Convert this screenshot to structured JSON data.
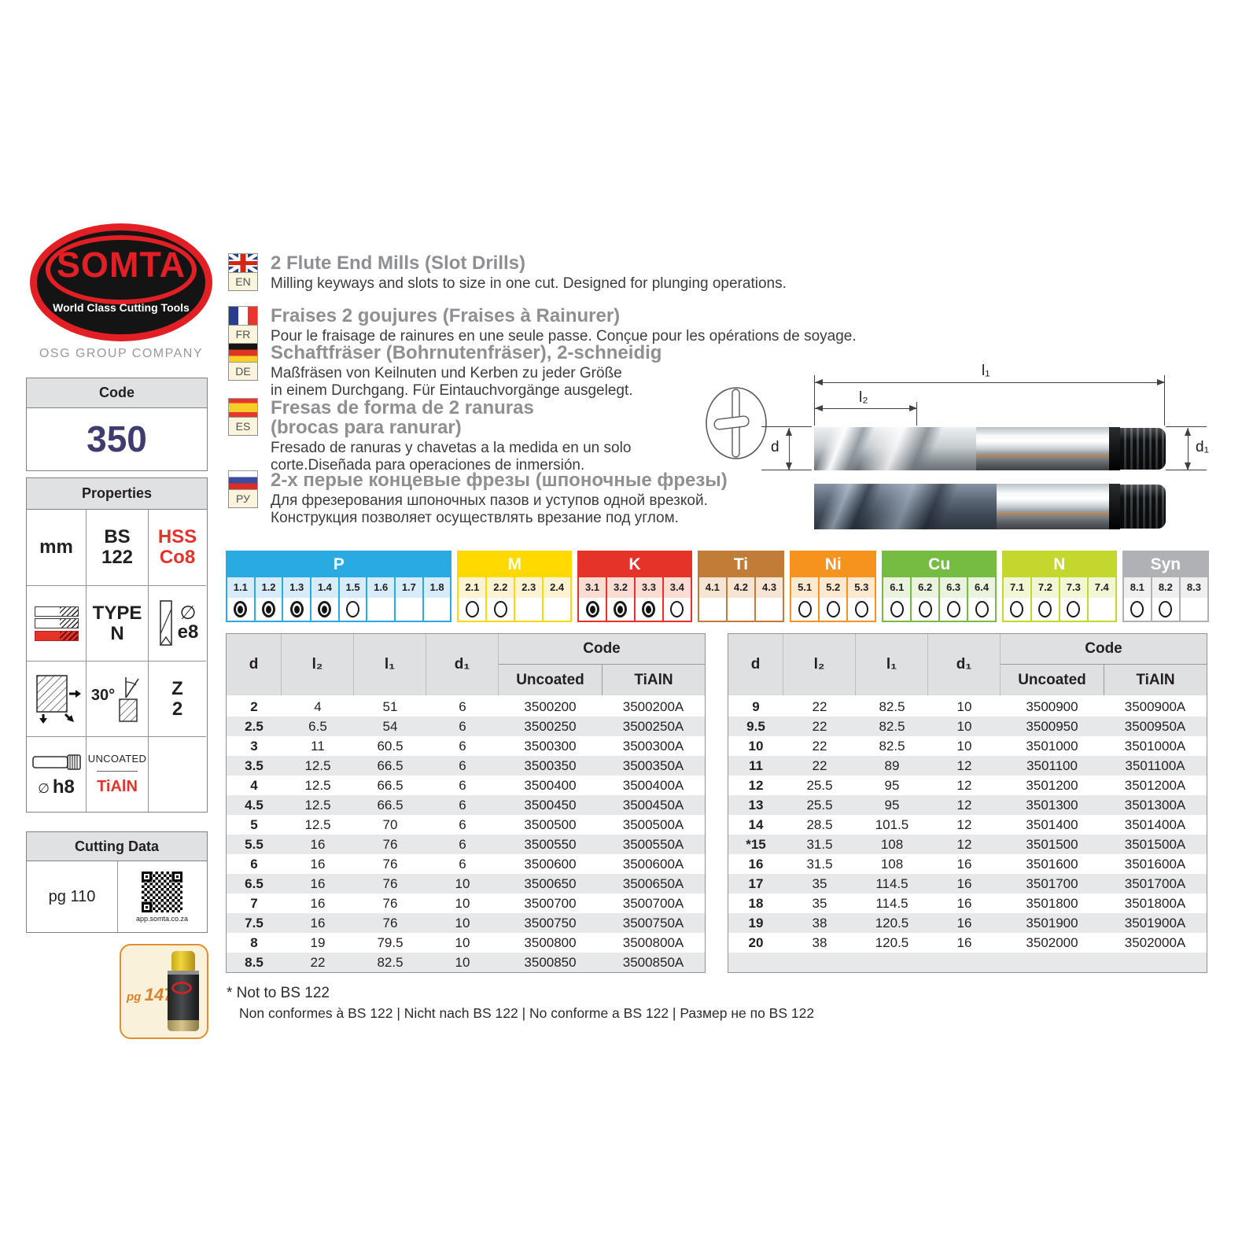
{
  "brand": {
    "logo_line1": "SOMTA",
    "logo_line2": "World Class Cutting Tools",
    "company": "OSG GROUP COMPANY"
  },
  "code_box": {
    "label": "Code",
    "value": "350"
  },
  "properties": {
    "title": "Properties",
    "unit": "mm",
    "standard": [
      "BS",
      "122"
    ],
    "material": [
      "HSS",
      "Co8"
    ],
    "type": [
      "TYPE",
      "N"
    ],
    "diameter_symbol": "∅",
    "flute_tolerance": "e8",
    "helix_angle": "30°",
    "teeth": [
      "Z",
      "2"
    ],
    "shank_tolerance": "h8",
    "coating_top": "UNCOATED",
    "coating_bottom": "TiAlN"
  },
  "languages": [
    {
      "tag": "EN",
      "flag": "uk",
      "title": "2 Flute End Mills (Slot Drills)",
      "body": "Milling keyways and slots to size in one cut. Designed for plunging operations."
    },
    {
      "tag": "FR",
      "flag": "fr",
      "title": "Fraises 2 goujures (Fraises à Rainurer)",
      "body": "Pour le fraisage de rainures en une seule passe. Conçue pour les opérations de soyage."
    },
    {
      "tag": "DE",
      "flag": "de",
      "title": "Schaftfräser (Bohrnutenfräser), 2-schneidig",
      "body": "Maßfräsen von Keilnuten und Kerben zu jeder Größe\nin einem Durchgang. Für Eintauchvorgänge ausgelegt."
    },
    {
      "tag": "ES",
      "flag": "es",
      "title": "Fresas de forma de 2 ranuras\n(brocas para ranurar)",
      "body": "Fresado de ranuras y chavetas a la medida en un solo\ncorte.Diseñada para operaciones de inmersión."
    },
    {
      "tag": "РУ",
      "flag": "ru",
      "title": "2-х перые концевые фрезы (шпоночные фрезы)",
      "body": "Для фрезерования шпоночных пазов и уступов одной врезкой.\nКонструкция позволяет осуществлять врезание под углом."
    }
  ],
  "diagram": {
    "l1": "l₁",
    "l2": "l₂",
    "d": "d",
    "d1": "d₁"
  },
  "material_chart": {
    "groups": [
      {
        "name": "P",
        "color": "#29ABE2",
        "tint": "#D7ECF9",
        "cells": [
          {
            "label": "1.1",
            "state": "filled"
          },
          {
            "label": "1.2",
            "state": "filled"
          },
          {
            "label": "1.3",
            "state": "filled"
          },
          {
            "label": "1.4",
            "state": "filled"
          },
          {
            "label": "1.5",
            "state": "empty"
          },
          {
            "label": "1.6",
            "state": "none"
          },
          {
            "label": "1.7",
            "state": "none"
          },
          {
            "label": "1.8",
            "state": "none"
          }
        ]
      },
      {
        "name": "M",
        "color": "#FFD900",
        "tint": "#FCF3D2",
        "cells": [
          {
            "label": "2.1",
            "state": "empty"
          },
          {
            "label": "2.2",
            "state": "empty"
          },
          {
            "label": "2.3",
            "state": "none"
          },
          {
            "label": "2.4",
            "state": "none"
          }
        ]
      },
      {
        "name": "K",
        "color": "#E6332A",
        "tint": "#F9DDD2",
        "cells": [
          {
            "label": "3.1",
            "state": "filled"
          },
          {
            "label": "3.2",
            "state": "filled"
          },
          {
            "label": "3.3",
            "state": "filled"
          },
          {
            "label": "3.4",
            "state": "empty"
          }
        ]
      },
      {
        "name": "Ti",
        "color": "#C17C37",
        "tint": "#F6E5D3",
        "cells": [
          {
            "label": "4.1",
            "state": "none"
          },
          {
            "label": "4.2",
            "state": "none"
          },
          {
            "label": "4.3",
            "state": "none"
          }
        ]
      },
      {
        "name": "Ni",
        "color": "#F6921E",
        "tint": "#FDE8D0",
        "cells": [
          {
            "label": "5.1",
            "state": "empty"
          },
          {
            "label": "5.2",
            "state": "empty"
          },
          {
            "label": "5.3",
            "state": "empty"
          }
        ]
      },
      {
        "name": "Cu",
        "color": "#76BC43",
        "tint": "#E9F3DE",
        "cells": [
          {
            "label": "6.1",
            "state": "empty"
          },
          {
            "label": "6.2",
            "state": "empty"
          },
          {
            "label": "6.3",
            "state": "empty"
          },
          {
            "label": "6.4",
            "state": "empty"
          }
        ]
      },
      {
        "name": "N",
        "color": "#C3D72E",
        "tint": "#F2F6D4",
        "cells": [
          {
            "label": "7.1",
            "state": "empty"
          },
          {
            "label": "7.2",
            "state": "empty"
          },
          {
            "label": "7.3",
            "state": "empty"
          },
          {
            "label": "7.4",
            "state": "none"
          }
        ]
      },
      {
        "name": "Syn",
        "color": "#AFB1B4",
        "tint": "#EFEFF0",
        "cells": [
          {
            "label": "8.1",
            "state": "empty"
          },
          {
            "label": "8.2",
            "state": "empty"
          },
          {
            "label": "8.3",
            "state": "none"
          }
        ]
      }
    ]
  },
  "tables": {
    "headers": {
      "d": "d",
      "l2": "l₂",
      "l1": "l₁",
      "d1": "d₁",
      "code": "Code",
      "uncoated": "Uncoated",
      "coated": "TiAlN"
    },
    "left_rows": [
      [
        "2",
        "4",
        "51",
        "6",
        "3500200",
        "3500200A"
      ],
      [
        "2.5",
        "6.5",
        "54",
        "6",
        "3500250",
        "3500250A"
      ],
      [
        "3",
        "11",
        "60.5",
        "6",
        "3500300",
        "3500300A"
      ],
      [
        "3.5",
        "12.5",
        "66.5",
        "6",
        "3500350",
        "3500350A"
      ],
      [
        "4",
        "12.5",
        "66.5",
        "6",
        "3500400",
        "3500400A"
      ],
      [
        "4.5",
        "12.5",
        "66.5",
        "6",
        "3500450",
        "3500450A"
      ],
      [
        "5",
        "12.5",
        "70",
        "6",
        "3500500",
        "3500500A"
      ],
      [
        "5.5",
        "16",
        "76",
        "6",
        "3500550",
        "3500550A"
      ],
      [
        "6",
        "16",
        "76",
        "6",
        "3500600",
        "3500600A"
      ],
      [
        "6.5",
        "16",
        "76",
        "10",
        "3500650",
        "3500650A"
      ],
      [
        "7",
        "16",
        "76",
        "10",
        "3500700",
        "3500700A"
      ],
      [
        "7.5",
        "16",
        "76",
        "10",
        "3500750",
        "3500750A"
      ],
      [
        "8",
        "19",
        "79.5",
        "10",
        "3500800",
        "3500800A"
      ],
      [
        "8.5",
        "22",
        "82.5",
        "10",
        "3500850",
        "3500850A"
      ]
    ],
    "right_rows": [
      [
        "9",
        "22",
        "82.5",
        "10",
        "3500900",
        "3500900A"
      ],
      [
        "9.5",
        "22",
        "82.5",
        "10",
        "3500950",
        "3500950A"
      ],
      [
        "10",
        "22",
        "82.5",
        "10",
        "3501000",
        "3501000A"
      ],
      [
        "11",
        "22",
        "89",
        "12",
        "3501100",
        "3501100A"
      ],
      [
        "12",
        "25.5",
        "95",
        "12",
        "3501200",
        "3501200A"
      ],
      [
        "13",
        "25.5",
        "95",
        "12",
        "3501300",
        "3501300A"
      ],
      [
        "14",
        "28.5",
        "101.5",
        "12",
        "3501400",
        "3501400A"
      ],
      [
        "*15",
        "31.5",
        "108",
        "12",
        "3501500",
        "3501500A"
      ],
      [
        "16",
        "31.5",
        "108",
        "16",
        "3501600",
        "3501600A"
      ],
      [
        "17",
        "35",
        "114.5",
        "16",
        "3501700",
        "3501700A"
      ],
      [
        "18",
        "35",
        "114.5",
        "16",
        "3501800",
        "3501800A"
      ],
      [
        "19",
        "38",
        "120.5",
        "16",
        "3501900",
        "3501900A"
      ],
      [
        "20",
        "38",
        "120.5",
        "16",
        "3502000",
        "3502000A"
      ]
    ]
  },
  "cutting_data": {
    "title": "Cutting Data",
    "page_ref": "pg 110",
    "qr_caption": "app.somta.co.za"
  },
  "fluid_box": {
    "prefix": "pg",
    "number": "147"
  },
  "footnote": {
    "line1": "* Not to BS 122",
    "line2": "Non conformes à BS 122 | Nicht nach BS 122 | No conforme a BS 122 | Размер не по BS 122"
  }
}
